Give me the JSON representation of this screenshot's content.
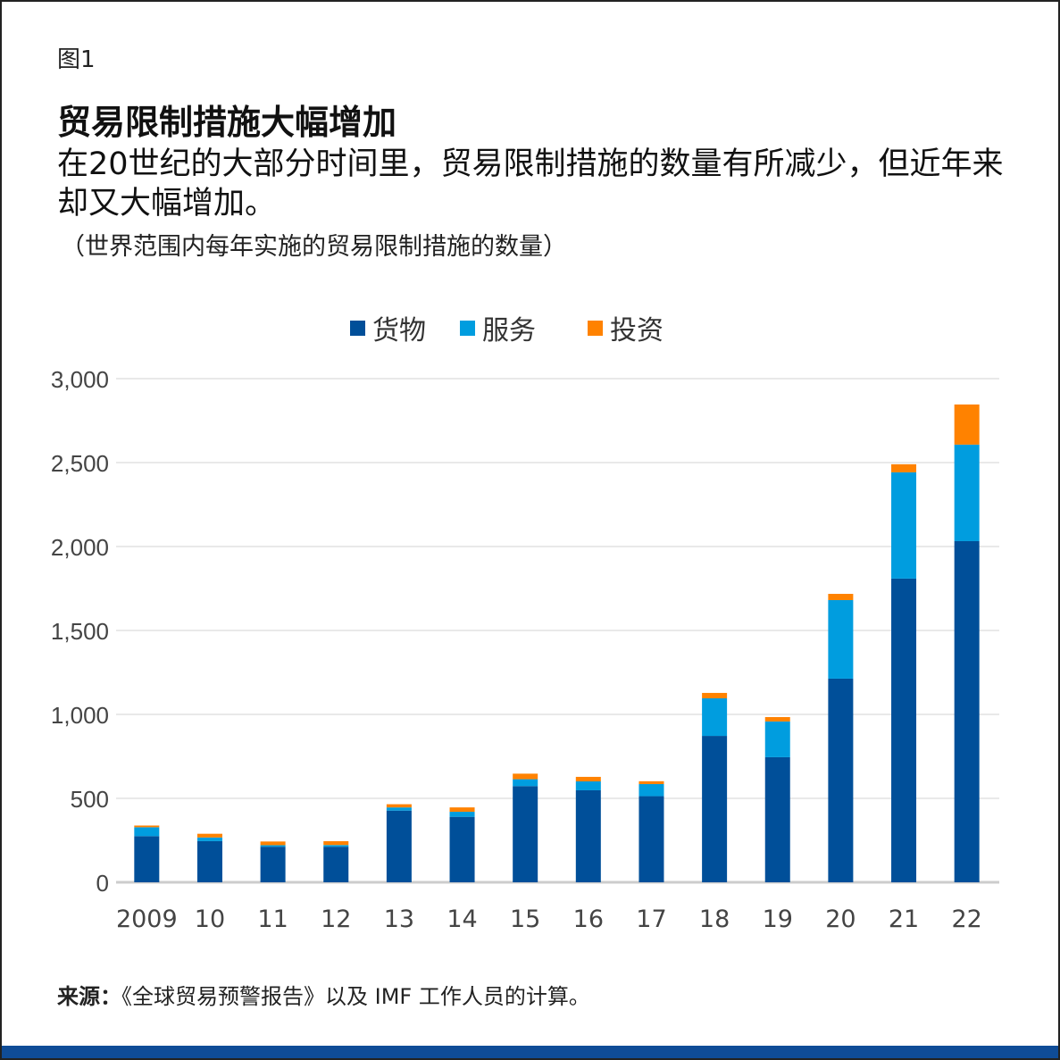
{
  "figure_label": "图1",
  "title": "贸易限制措施大幅增加",
  "subtitle": "在20世纪的大部分时间里，贸易限制措施的数量有所减少，但近年来却又大幅增加。",
  "note": "（世界范围内每年实施的贸易限制措施的数量）",
  "source_label": "来源：",
  "source_text": "《全球贸易预警报告》以及 IMF 工作人员的计算。",
  "chart_data": {
    "type": "bar",
    "stacked": true,
    "categories": [
      "2009",
      "10",
      "11",
      "12",
      "13",
      "14",
      "15",
      "16",
      "17",
      "18",
      "19",
      "20",
      "21",
      "22"
    ],
    "series": [
      {
        "name": "货物",
        "color": "#004f99",
        "values": [
          275,
          245,
          212,
          212,
          427,
          390,
          573,
          548,
          513,
          872,
          745,
          1213,
          1809,
          2032
        ]
      },
      {
        "name": "服务",
        "color": "#009ddf",
        "values": [
          53,
          22,
          9,
          10,
          19,
          30,
          41,
          53,
          72,
          224,
          213,
          468,
          633,
          575
        ]
      },
      {
        "name": "投资",
        "color": "#ff8200",
        "values": [
          10,
          22,
          22,
          23,
          19,
          26,
          33,
          27,
          17,
          32,
          26,
          37,
          48,
          239
        ]
      }
    ],
    "ylim": [
      0,
      3000
    ],
    "yticks": [
      0,
      500,
      1000,
      1500,
      2000,
      2500,
      3000
    ],
    "ytick_labels": [
      "0",
      "500",
      "1,000",
      "1,500",
      "2,000",
      "2,500",
      "3,000"
    ],
    "grid": true,
    "legend": "top-center"
  }
}
